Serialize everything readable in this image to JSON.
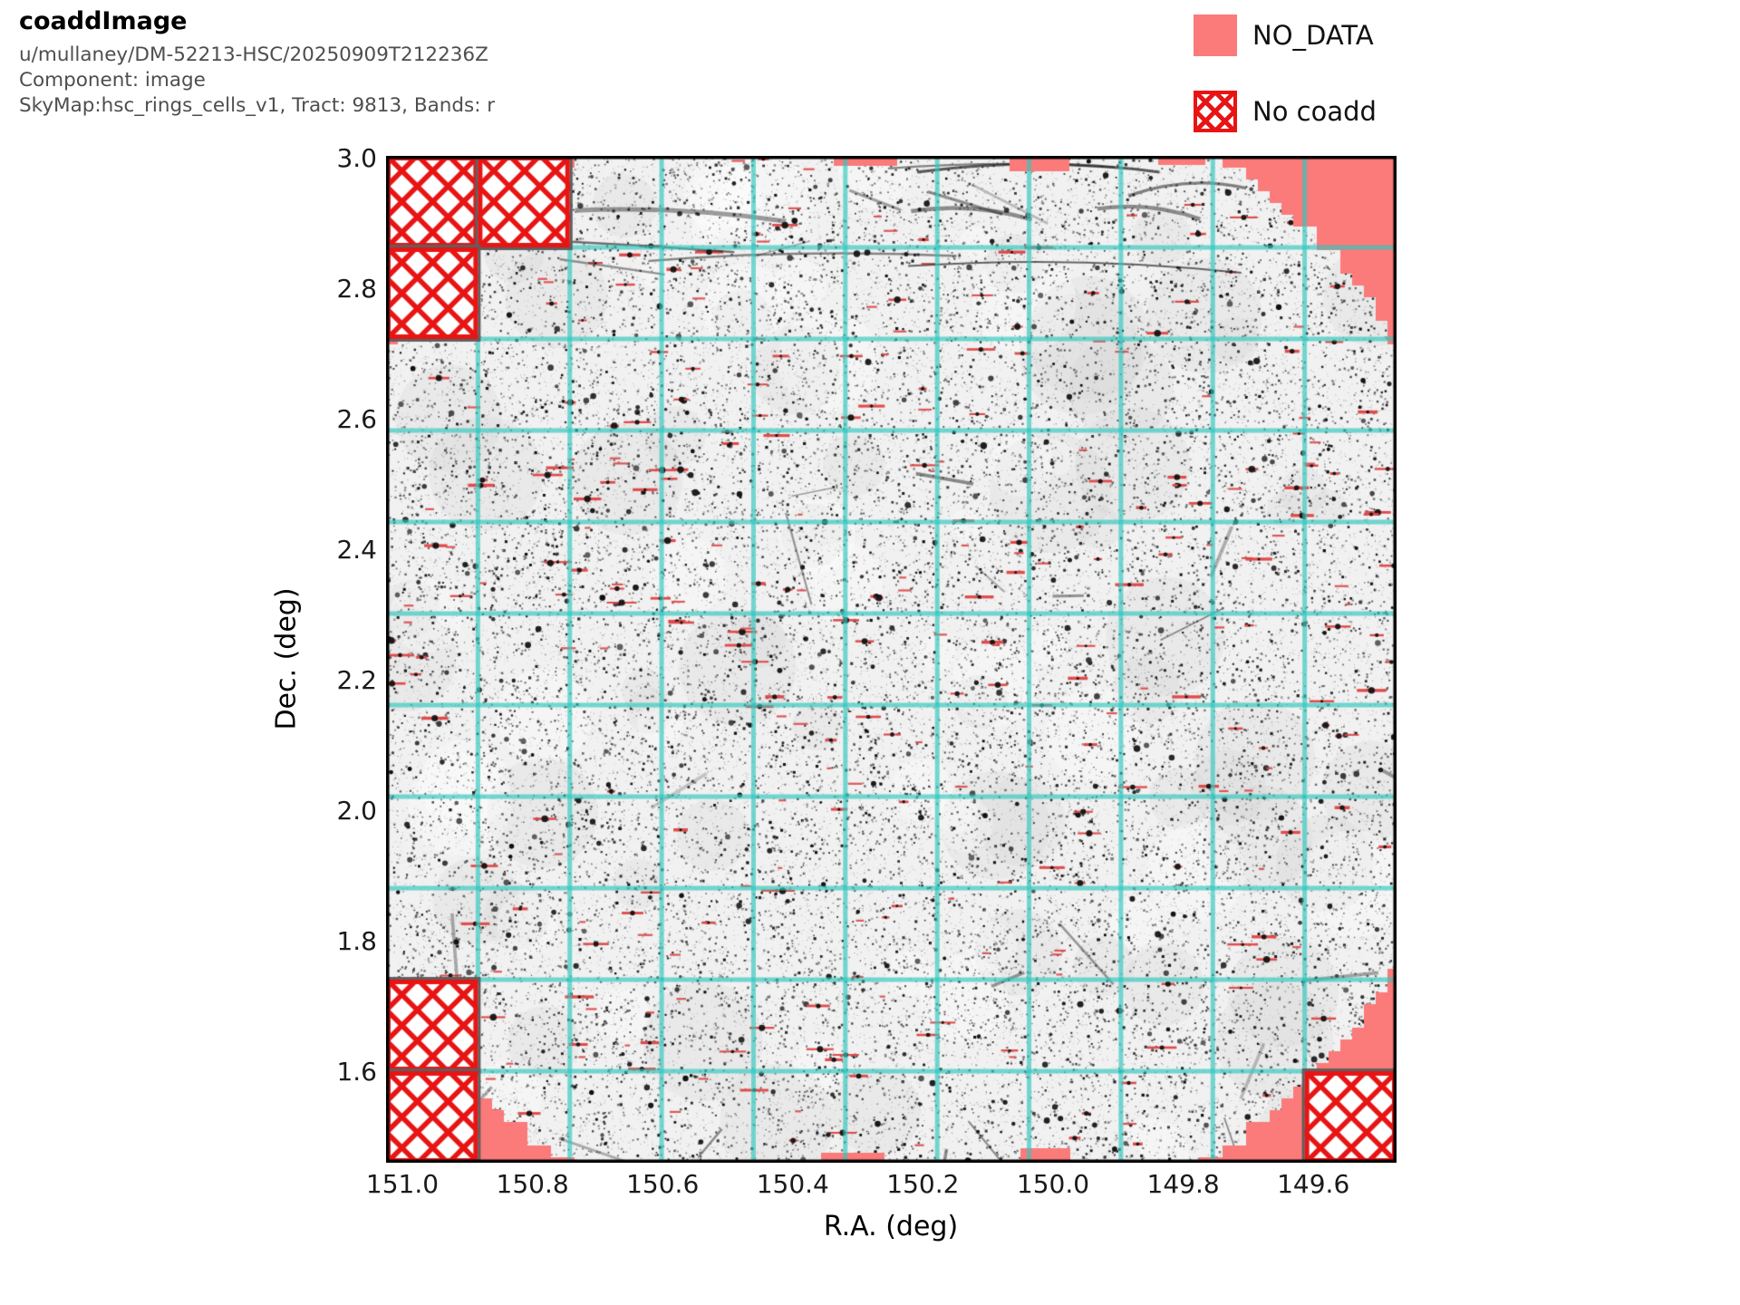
{
  "header": {
    "title": "coaddImage",
    "lines": [
      "u/mullaney/DM-52213-HSC/20250909T212236Z",
      "Component: image",
      "SkyMap:hsc_rings_cells_v1, Tract: 9813, Bands: r"
    ]
  },
  "legend": {
    "items": [
      {
        "label": "NO_DATA",
        "swatch": "filled",
        "color": "#fb7a7a"
      },
      {
        "label": "No coadd",
        "swatch": "crosshatch",
        "color": "#e81414"
      }
    ]
  },
  "chart_data": {
    "type": "heatmap",
    "description": "Grayscale r-band coadd sky image of tract 9813 (roughly circular footprint) shown over a NO_DATA background, with turquoise patch-boundary grid lines and red cross-hatched patches where no coadd exists",
    "xlabel": "R.A. (deg)",
    "ylabel": "Dec. (deg)",
    "x_ticks": [
      151.0,
      150.8,
      150.6,
      150.4,
      150.2,
      150.0,
      149.8,
      149.6
    ],
    "x_tick_labels": [
      "151.0",
      "150.8",
      "150.6",
      "150.4",
      "150.2",
      "150.0",
      "149.8",
      "149.6"
    ],
    "y_ticks": [
      3.0,
      2.8,
      2.6,
      2.4,
      2.2,
      2.0,
      1.8,
      1.6
    ],
    "y_tick_labels": [
      "3.0",
      "2.8",
      "2.6",
      "2.4",
      "2.2",
      "2.0",
      "1.8",
      "1.6"
    ],
    "x_range": [
      151.03,
      149.47
    ],
    "y_range": [
      1.46,
      3.0
    ],
    "x_axis_inverted": true,
    "grid": {
      "style": "patch-boundaries",
      "rows": 11,
      "cols": 11,
      "color": "#2fc7bd",
      "on": true
    },
    "footprint": {
      "shape": "circle",
      "center_ra": 150.25,
      "center_dec": 2.23,
      "radius_deg": 0.92
    },
    "no_coadd_patches": [
      {
        "row": 0,
        "col": 0
      },
      {
        "row": 0,
        "col": 1
      },
      {
        "row": 1,
        "col": 0
      },
      {
        "row": 9,
        "col": 0
      },
      {
        "row": 10,
        "col": 0
      },
      {
        "row": 10,
        "col": 10
      }
    ],
    "colors": {
      "no_data": "#fb7a7a",
      "no_coadd_hatch": "#e81414",
      "grid": "#2fc7bd",
      "image_background": "#f1f1f1",
      "bleed_trail": "#e14b4b",
      "border": "#000000"
    }
  }
}
